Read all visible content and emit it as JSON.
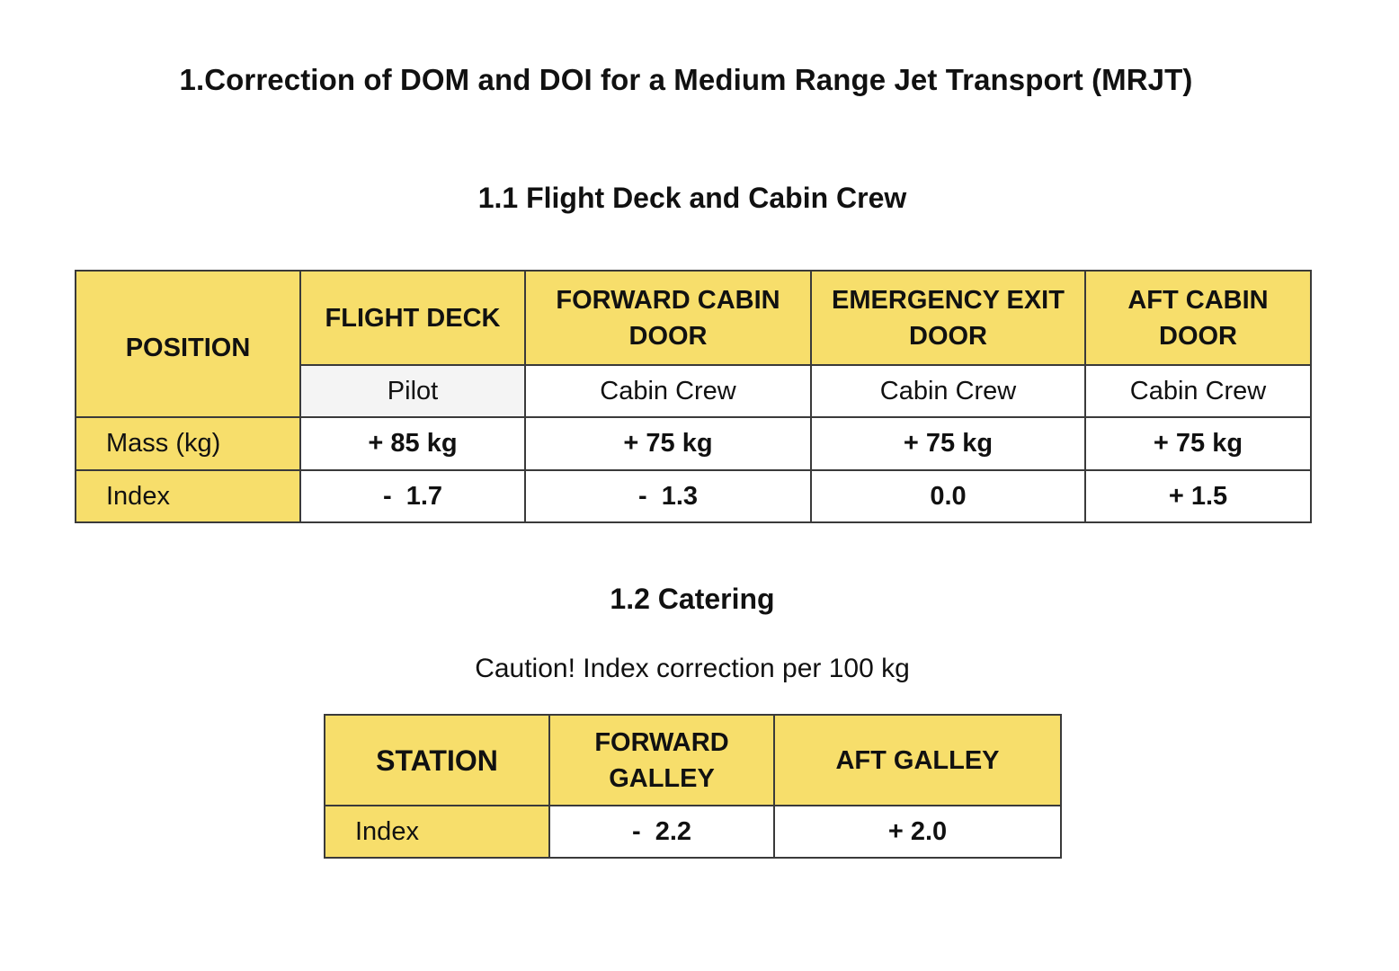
{
  "title": "1.Correction of DOM and DOI for a Medium Range Jet Transport (MRJT)",
  "crew": {
    "heading": "1.1 Flight Deck and Cabin Crew",
    "position_label": "POSITION",
    "columns": [
      "FLIGHT DECK",
      "FORWARD CABIN DOOR",
      "EMERGENCY EXIT DOOR",
      "AFT CABIN DOOR"
    ],
    "roles": [
      "Pilot",
      "Cabin Crew",
      "Cabin Crew",
      "Cabin Crew"
    ],
    "mass_label": "Mass (kg)",
    "mass": [
      "+ 85 kg",
      "+ 75 kg",
      "+ 75 kg",
      "+ 75 kg"
    ],
    "index_label": "Index",
    "index": [
      "-  1.7",
      "-  1.3",
      "0.0",
      "+ 1.5"
    ]
  },
  "catering": {
    "heading": "1.2 Catering",
    "caution": "Caution! Index correction per 100 kg",
    "station_label": "STATION",
    "columns": [
      "FORWARD GALLEY",
      "AFT GALLEY"
    ],
    "index_label": "Index",
    "index": [
      "-  2.2",
      "+ 2.0"
    ]
  },
  "colors": {
    "header_fill": "#f7de6b",
    "border": "#3a3a3a"
  }
}
